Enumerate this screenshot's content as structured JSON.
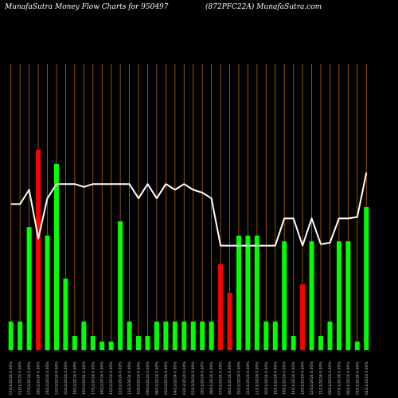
{
  "header": {
    "left": "MunafaSutra  Money Flow  Charts for 950497",
    "right": "(872PFC22A) MunafaSutra.com"
  },
  "chart_data": {
    "type": "bar",
    "title": "MunafaSutra  Money Flow  Charts for 950497",
    "subtitle": "(872PFC22A) MunafaSutra.com",
    "grid": true,
    "ylim": [
      0,
      100
    ],
    "colors": {
      "up": "#00ff00",
      "down": "#ff0000",
      "line": "#ffffff",
      "grid": "#b8650c",
      "background": "#000000"
    },
    "categories": [
      "07/01/2025 0.00%",
      "01/01/2025 0.00%",
      "27/12/2024 0.00%",
      "26/12/2024 0.00%",
      "24/12/2024 0.00%",
      "23/12/2024 0.00%",
      "20/12/2024 0.00%",
      "19/12/2024 0.00%",
      "18/12/2024 0.00%",
      "17/12/2024 0.00%",
      "16/12/2024 0.00%",
      "13/12/2024 0.00%",
      "12/12/2024 0.00%",
      "11/12/2024 0.00%",
      "10/12/2024 0.00%",
      "09/12/2024 0.00%",
      "06/12/2024 0.00%",
      "05/12/2024 0.00%",
      "04/12/2024 0.00%",
      "03/12/2024 0.00%",
      "02/12/2024 0.00%",
      "29/11/2024 0.00%",
      "28/11/2024 0.00%",
      "27/11/2024 0.00%",
      "26/11/2024 0.00%",
      "25/11/2024 0.00%",
      "22/11/2024 0.00%",
      "21/11/2024 0.00%",
      "20/11/2024 0.00%",
      "19/11/2024 0.00%",
      "18/11/2024 0.00%",
      "14/11/2024 0.00%",
      "13/11/2024 0.00%",
      "12/11/2024 0.00%",
      "11/11/2024 0.00%",
      "08/11/2024 0.00%",
      "07/11/2024 0.00%",
      "06/11/2024 0.00%",
      "05/11/2024 0.00%",
      "04/11/2024 0.00%"
    ],
    "bars": [
      {
        "value": 10,
        "dir": "up"
      },
      {
        "value": 10,
        "dir": "up"
      },
      {
        "value": 43,
        "dir": "up"
      },
      {
        "value": 70,
        "dir": "down"
      },
      {
        "value": 40,
        "dir": "up"
      },
      {
        "value": 65,
        "dir": "up"
      },
      {
        "value": 25,
        "dir": "up"
      },
      {
        "value": 5,
        "dir": "up"
      },
      {
        "value": 10,
        "dir": "up"
      },
      {
        "value": 5,
        "dir": "up"
      },
      {
        "value": 3,
        "dir": "up"
      },
      {
        "value": 3,
        "dir": "up"
      },
      {
        "value": 45,
        "dir": "up"
      },
      {
        "value": 10,
        "dir": "up"
      },
      {
        "value": 5,
        "dir": "up"
      },
      {
        "value": 5,
        "dir": "up"
      },
      {
        "value": 10,
        "dir": "up"
      },
      {
        "value": 10,
        "dir": "up"
      },
      {
        "value": 10,
        "dir": "up"
      },
      {
        "value": 10,
        "dir": "up"
      },
      {
        "value": 10,
        "dir": "up"
      },
      {
        "value": 10,
        "dir": "up"
      },
      {
        "value": 10,
        "dir": "up"
      },
      {
        "value": 30,
        "dir": "down"
      },
      {
        "value": 20,
        "dir": "down"
      },
      {
        "value": 40,
        "dir": "up"
      },
      {
        "value": 40,
        "dir": "up"
      },
      {
        "value": 40,
        "dir": "up"
      },
      {
        "value": 10,
        "dir": "up"
      },
      {
        "value": 10,
        "dir": "up"
      },
      {
        "value": 38,
        "dir": "up"
      },
      {
        "value": 5,
        "dir": "up"
      },
      {
        "value": 23,
        "dir": "down"
      },
      {
        "value": 38,
        "dir": "up"
      },
      {
        "value": 5,
        "dir": "up"
      },
      {
        "value": 10,
        "dir": "up"
      },
      {
        "value": 38,
        "dir": "up"
      },
      {
        "value": 38,
        "dir": "up"
      },
      {
        "value": 3,
        "dir": "up"
      },
      {
        "value": 50,
        "dir": "up"
      }
    ],
    "line": [
      51,
      51,
      56,
      39,
      53,
      58,
      58,
      58,
      57,
      58,
      58,
      58,
      58,
      58,
      53,
      58,
      53,
      58,
      56,
      58,
      56,
      55,
      53,
      36.5,
      36.5,
      36.5,
      36.5,
      36.5,
      36.5,
      36.5,
      46,
      46,
      36.5,
      46,
      37,
      37.5,
      46,
      46,
      46.5,
      62
    ]
  }
}
